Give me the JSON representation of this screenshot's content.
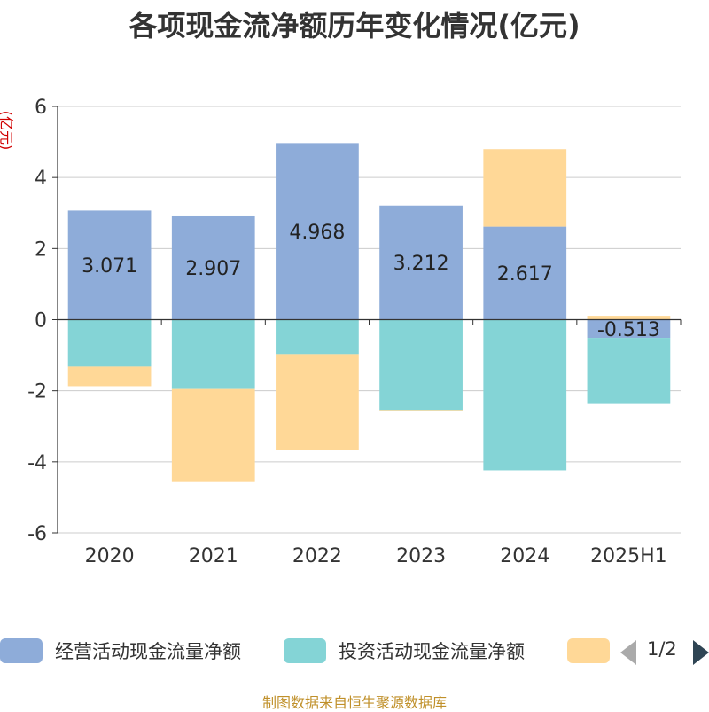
{
  "title": "各项现金流净额历年变化情况(亿元)",
  "unit_label": "(亿元)",
  "source": "制图数据来自恒生聚源数据库",
  "legend": {
    "items": [
      {
        "label": "经营活动现金流量净额",
        "color": "#8eacd9"
      },
      {
        "label": "投资活动现金流量净额",
        "color": "#84d4d6"
      },
      {
        "label": "",
        "color": "#ffd897"
      }
    ],
    "pager": "1/2"
  },
  "chart_data": {
    "type": "bar",
    "stacked": true,
    "categories": [
      "2020",
      "2021",
      "2022",
      "2023",
      "2024",
      "2025H1"
    ],
    "ylim": [
      -6,
      6
    ],
    "yticks": [
      -6,
      -4,
      -2,
      0,
      2,
      4,
      6
    ],
    "grid": true,
    "series": [
      {
        "name": "经营活动现金流量净额",
        "color": "#8eacd9",
        "values": [
          3.071,
          2.907,
          4.968,
          3.212,
          2.617,
          -0.513
        ],
        "labels": [
          "3.071",
          "2.907",
          "4.968",
          "3.212",
          "2.617",
          "-0.513"
        ]
      },
      {
        "name": "投资活动现金流量净额",
        "color": "#84d4d6",
        "values": [
          -1.32,
          -1.95,
          -0.97,
          -2.54,
          -4.24,
          -1.86
        ]
      },
      {
        "name": "",
        "color": "#ffd897",
        "values": [
          -0.55,
          -2.62,
          -2.69,
          -0.04,
          2.18,
          0.11
        ]
      }
    ]
  }
}
